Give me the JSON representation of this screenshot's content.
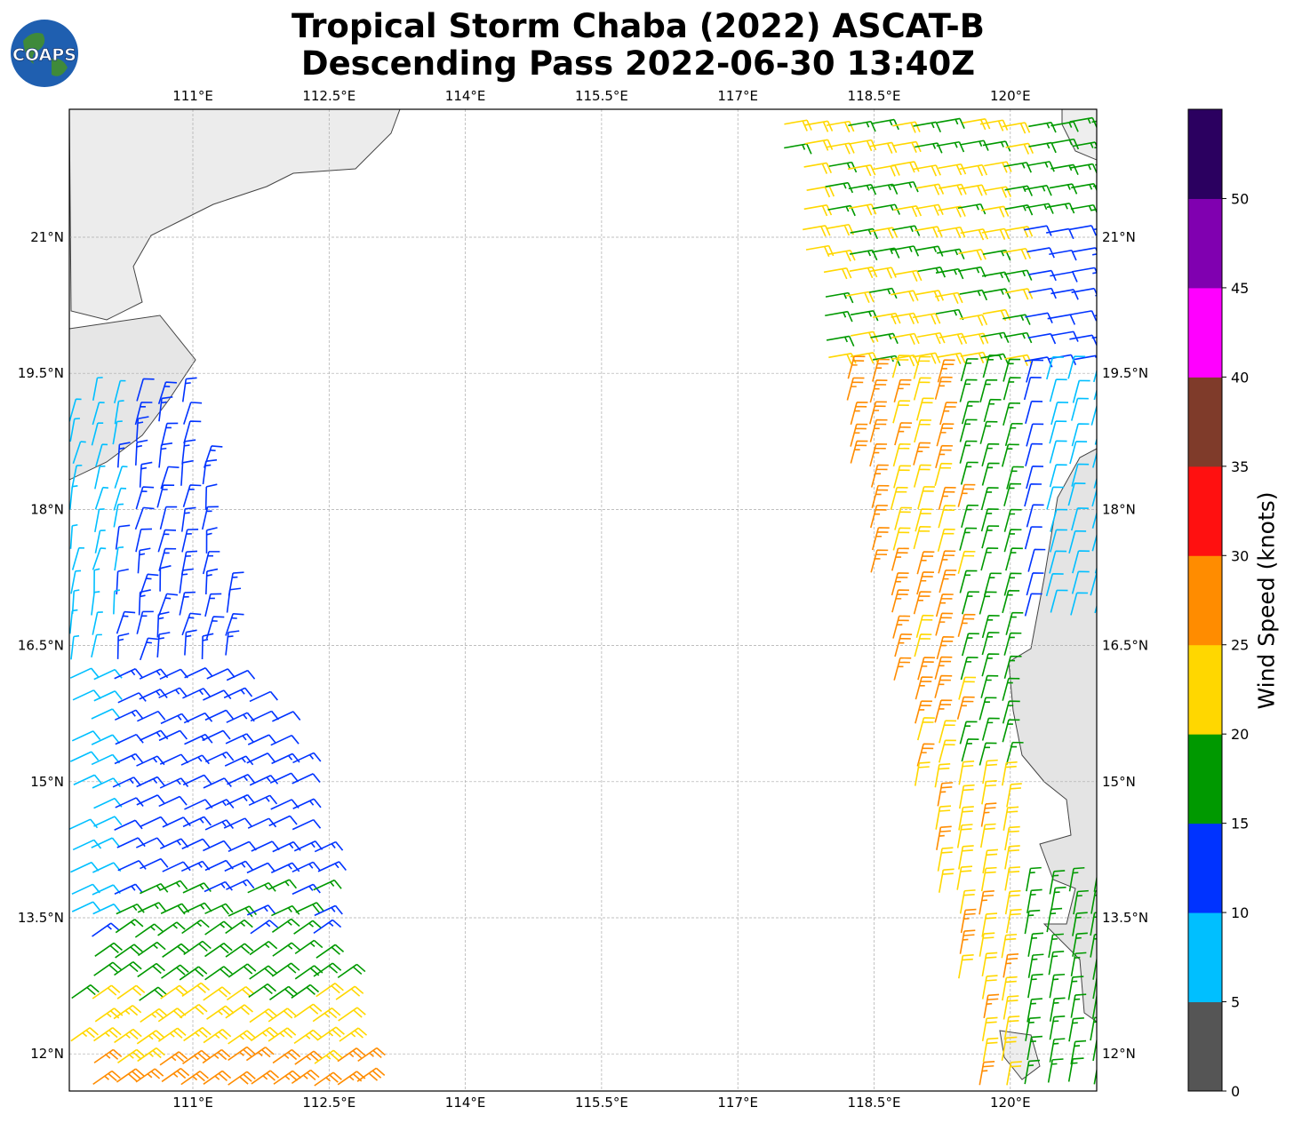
{
  "title_line1": "Tropical Storm Chaba (2022) ASCAT-B",
  "title_line2": "Descending Pass 2022-06-30 13:40Z",
  "logo_text": "COAPS",
  "lon_ticks": [
    "111°E",
    "112.5°E",
    "114°E",
    "115.5°E",
    "117°E",
    "118.5°E",
    "120°E"
  ],
  "lat_ticks": [
    "21°N",
    "19.5°N",
    "18°N",
    "16.5°N",
    "15°N",
    "13.5°N",
    "12°N"
  ],
  "colorbar": {
    "label": "Wind Speed (knots)",
    "ticks": [
      "0",
      "5",
      "10",
      "15",
      "20",
      "25",
      "30",
      "35",
      "40",
      "45",
      "50"
    ],
    "colors": [
      "#555555",
      "#00bfff",
      "#0033ff",
      "#009900",
      "#ffd700",
      "#ff8c00",
      "#ff1010",
      "#7f3b2a",
      "#ff00ff",
      "#8000b0",
      "#2b0060"
    ]
  }
}
